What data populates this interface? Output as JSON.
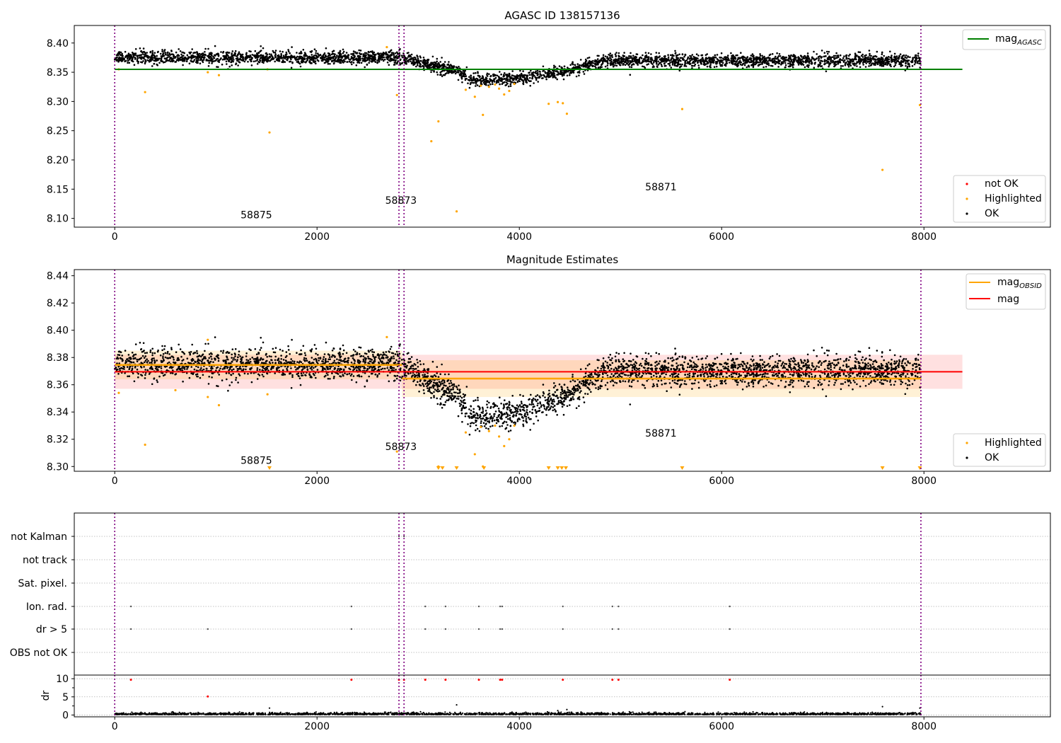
{
  "chart_data": [
    {
      "type": "scatter",
      "title": "AGASC ID 138157136",
      "xlim": [
        -400,
        9250
      ],
      "ylim": [
        8.085,
        8.43
      ],
      "x_ticks": [
        0,
        2000,
        4000,
        6000,
        8000
      ],
      "y_ticks": [
        8.1,
        8.15,
        8.2,
        8.25,
        8.3,
        8.35,
        8.4
      ],
      "y_tick_labels": [
        "8.10",
        "8.15",
        "8.20",
        "8.25",
        "8.30",
        "8.35",
        "8.40"
      ],
      "vlines": [
        0,
        2810,
        2860,
        7970
      ],
      "obsid_labels": [
        {
          "text": "58875",
          "x": 1400,
          "y": 8.1
        },
        {
          "text": "58873",
          "x": 2830,
          "y": 8.125
        },
        {
          "text": "58871",
          "x": 5400,
          "y": 8.148
        }
      ],
      "hline": {
        "name": "mag",
        "sub": "AGASC",
        "value": 8.355,
        "x_range": [
          0,
          8380
        ],
        "color": "#008000"
      },
      "legend_lines": [
        {
          "name": "mag",
          "sub": "AGASC",
          "color": "#008000"
        }
      ],
      "legend_points": [
        {
          "name": "not OK",
          "color": "#ff0000"
        },
        {
          "name": "Highlighted",
          "color": "#ffa500"
        },
        {
          "name": "OK",
          "color": "#000000"
        }
      ],
      "highlighted_points": [
        [
          40,
          8.355
        ],
        [
          300,
          8.316
        ],
        [
          920,
          8.35
        ],
        [
          1030,
          8.345
        ],
        [
          1530,
          8.247
        ],
        [
          1510,
          8.355
        ],
        [
          2790,
          8.311
        ],
        [
          2690,
          8.393
        ],
        [
          3130,
          8.232
        ],
        [
          3200,
          8.266
        ],
        [
          3380,
          8.112
        ],
        [
          3470,
          8.32
        ],
        [
          3560,
          8.308
        ],
        [
          3640,
          8.277
        ],
        [
          4290,
          8.296
        ],
        [
          4380,
          8.299
        ],
        [
          4430,
          8.297
        ],
        [
          4470,
          8.279
        ],
        [
          5610,
          8.287
        ],
        [
          7590,
          8.183
        ],
        [
          7960,
          8.294
        ],
        [
          3620,
          8.327
        ],
        [
          3700,
          8.325
        ],
        [
          3760,
          8.329
        ],
        [
          3800,
          8.322
        ],
        [
          3850,
          8.312
        ],
        [
          3900,
          8.318
        ],
        [
          3950,
          8.33
        ]
      ]
    },
    {
      "type": "scatter",
      "title": "Magnitude Estimates",
      "xlim": [
        -400,
        9250
      ],
      "ylim": [
        8.2965,
        8.4445
      ],
      "x_ticks": [
        0,
        2000,
        4000,
        6000,
        8000
      ],
      "y_ticks": [
        8.3,
        8.32,
        8.34,
        8.36,
        8.38,
        8.4,
        8.42,
        8.44
      ],
      "y_tick_labels": [
        "8.30",
        "8.32",
        "8.34",
        "8.36",
        "8.38",
        "8.40",
        "8.42",
        "8.44"
      ],
      "vlines": [
        0,
        2810,
        2860,
        7970
      ],
      "obsid_labels": [
        {
          "text": "58875",
          "x": 1400,
          "y": 8.302
        },
        {
          "text": "58873",
          "x": 2830,
          "y": 8.312
        },
        {
          "text": "58871",
          "x": 5400,
          "y": 8.322
        }
      ],
      "mag_line": {
        "value": 8.3695,
        "band": [
          8.357,
          8.382
        ],
        "x_range": [
          0,
          8380
        ],
        "color": "#ff0000"
      },
      "obsid_segments": [
        {
          "x_range": [
            0,
            2840
          ],
          "value": 8.3745,
          "band": [
            8.364,
            8.385
          ]
        },
        {
          "x_range": [
            2840,
            7970
          ],
          "value": 8.3645,
          "band": [
            8.351,
            8.378
          ]
        }
      ],
      "legend_lines": [
        {
          "name": "mag",
          "sub": "OBSID",
          "color": "#ffa500"
        },
        {
          "name": "mag",
          "sub": "",
          "color": "#ff0000"
        }
      ],
      "legend_points": [
        {
          "name": "Highlighted",
          "color": "#ffa500"
        },
        {
          "name": "OK",
          "color": "#000000"
        }
      ],
      "highlighted_points": [
        [
          40,
          8.354
        ],
        [
          300,
          8.316
        ],
        [
          920,
          8.393
        ],
        [
          920,
          8.351
        ],
        [
          1030,
          8.345
        ],
        [
          600,
          8.356
        ],
        [
          1510,
          8.353
        ],
        [
          2690,
          8.395
        ],
        [
          2790,
          8.311
        ],
        [
          3200,
          8.3
        ],
        [
          3470,
          8.325
        ],
        [
          3560,
          8.309
        ],
        [
          3640,
          8.3
        ],
        [
          3620,
          8.329
        ],
        [
          3700,
          8.326
        ],
        [
          3760,
          8.33
        ],
        [
          3800,
          8.322
        ],
        [
          3850,
          8.315
        ],
        [
          3900,
          8.32
        ],
        [
          3950,
          8.33
        ]
      ],
      "clipped_points": [
        1530,
        3200,
        3240,
        3380,
        3650,
        4290,
        4380,
        4420,
        4460,
        5610,
        7590,
        7960
      ]
    },
    {
      "type": "scatter",
      "xlim": [
        -400,
        9250
      ],
      "x_ticks": [
        0,
        2000,
        4000,
        6000,
        8000
      ],
      "vlines": [
        0,
        2810,
        2860,
        7970
      ],
      "flag_rows": [
        "not Kalman",
        "not track",
        "Sat. pixel.",
        "Ion. rad.",
        "dr > 5",
        "OBS not OK"
      ],
      "flag_events": {
        "not Kalman": [
          2810,
          2860
        ],
        "not track": [],
        "Sat. pixel.": [],
        "Ion. rad.": [
          160,
          2340,
          3070,
          3270,
          3600,
          3810,
          3830,
          4430,
          4920,
          4980,
          6080
        ],
        "dr > 5": [
          160,
          920,
          2340,
          3070,
          3270,
          3600,
          3810,
          3830,
          4430,
          4920,
          4980,
          6080
        ],
        "OBS not OK": []
      },
      "dr_ylabel": "dr",
      "dr_ylim": [
        -0.5,
        11
      ],
      "dr_y_ticks": [
        0,
        5,
        10
      ],
      "dr_y_tick_labels": [
        "0",
        "5",
        "10"
      ],
      "dr_large": [
        [
          160,
          9.7
        ],
        [
          920,
          5.1
        ],
        [
          2340,
          9.7
        ],
        [
          2810,
          9.7
        ],
        [
          2860,
          9.7
        ],
        [
          3070,
          9.7
        ],
        [
          3270,
          9.7
        ],
        [
          3600,
          9.7
        ],
        [
          3810,
          9.7
        ],
        [
          3830,
          9.7
        ],
        [
          4430,
          9.7
        ],
        [
          4920,
          9.7
        ],
        [
          4980,
          9.7
        ],
        [
          6080,
          9.7
        ]
      ],
      "dr_outliers": [
        [
          1530,
          1.9
        ],
        [
          3380,
          2.8
        ],
        [
          4380,
          1.2
        ],
        [
          4470,
          1.5
        ],
        [
          7590,
          2.3
        ],
        [
          7960,
          1.9
        ]
      ]
    }
  ]
}
